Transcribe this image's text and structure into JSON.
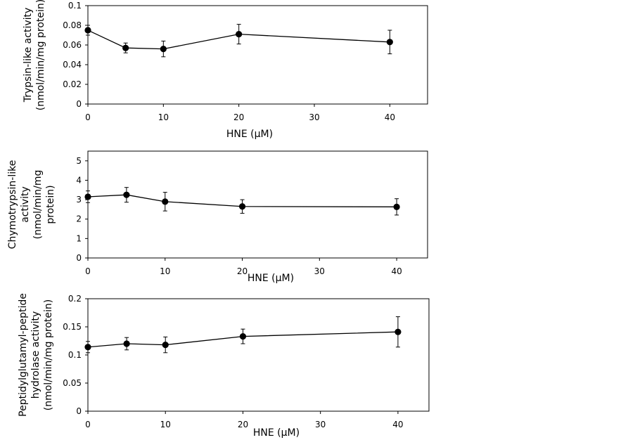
{
  "chart_data": [
    {
      "type": "line",
      "title": "",
      "xlabel": "HNE (μM)",
      "ylabel_lines": [
        "Trypsin-like activity",
        "(nmol/min/mg protein)"
      ],
      "xlim": [
        0,
        45
      ],
      "ylim": [
        0,
        0.1
      ],
      "xticks": [
        0,
        10,
        20,
        30,
        40
      ],
      "xtick_labels": [
        "0",
        "10",
        "20",
        "30",
        "40"
      ],
      "yticks": [
        0,
        0.02,
        0.04,
        0.06,
        0.08,
        0.1
      ],
      "ytick_labels": [
        "0",
        "0.02",
        "0.04",
        "0.06",
        "0.08",
        "0.1"
      ],
      "grid": false,
      "series": [
        {
          "x": [
            0,
            5,
            10,
            20,
            40
          ],
          "y": [
            0.075,
            0.057,
            0.056,
            0.071,
            0.063
          ],
          "error": [
            0.005,
            0.005,
            0.008,
            0.01,
            0.012
          ]
        }
      ]
    },
    {
      "type": "line",
      "title": "",
      "xlabel": "HNE (μM)",
      "ylabel_lines": [
        "Chymotrypsin-like",
        "activity",
        "(nmol/min/mg",
        "protein)"
      ],
      "xlim": [
        0,
        44
      ],
      "ylim": [
        0,
        5.5
      ],
      "xticks": [
        0,
        10,
        20,
        30,
        40
      ],
      "xtick_labels": [
        "0",
        "10",
        "20",
        "30",
        "40"
      ],
      "yticks": [
        0,
        1,
        2,
        3,
        4,
        5
      ],
      "ytick_labels": [
        "0",
        "1",
        "2",
        "3",
        "4",
        "5"
      ],
      "grid": false,
      "series": [
        {
          "x": [
            0,
            5,
            10,
            20,
            40
          ],
          "y": [
            3.15,
            3.25,
            2.9,
            2.65,
            2.63
          ],
          "error": [
            0.3,
            0.38,
            0.48,
            0.35,
            0.42
          ]
        }
      ]
    },
    {
      "type": "line",
      "title": "",
      "xlabel": "HNE (μM)",
      "ylabel_lines": [
        "Peptidylglutamyl-peptide",
        "hydrolase activity",
        "(nmol/min/mg protein)"
      ],
      "xlim": [
        0,
        44
      ],
      "ylim": [
        0,
        0.2
      ],
      "xticks": [
        0,
        10,
        20,
        30,
        40
      ],
      "xtick_labels": [
        "0",
        "10",
        "20",
        "30",
        "40"
      ],
      "yticks": [
        0,
        0.05,
        0.1,
        0.15,
        0.2
      ],
      "ytick_labels": [
        "0",
        "0.05",
        "0.1",
        "0.15",
        "0.2"
      ],
      "grid": false,
      "series": [
        {
          "x": [
            0,
            5,
            10,
            20,
            40
          ],
          "y": [
            0.114,
            0.12,
            0.118,
            0.133,
            0.141
          ],
          "error": [
            0.01,
            0.011,
            0.014,
            0.013,
            0.027
          ]
        }
      ]
    }
  ]
}
